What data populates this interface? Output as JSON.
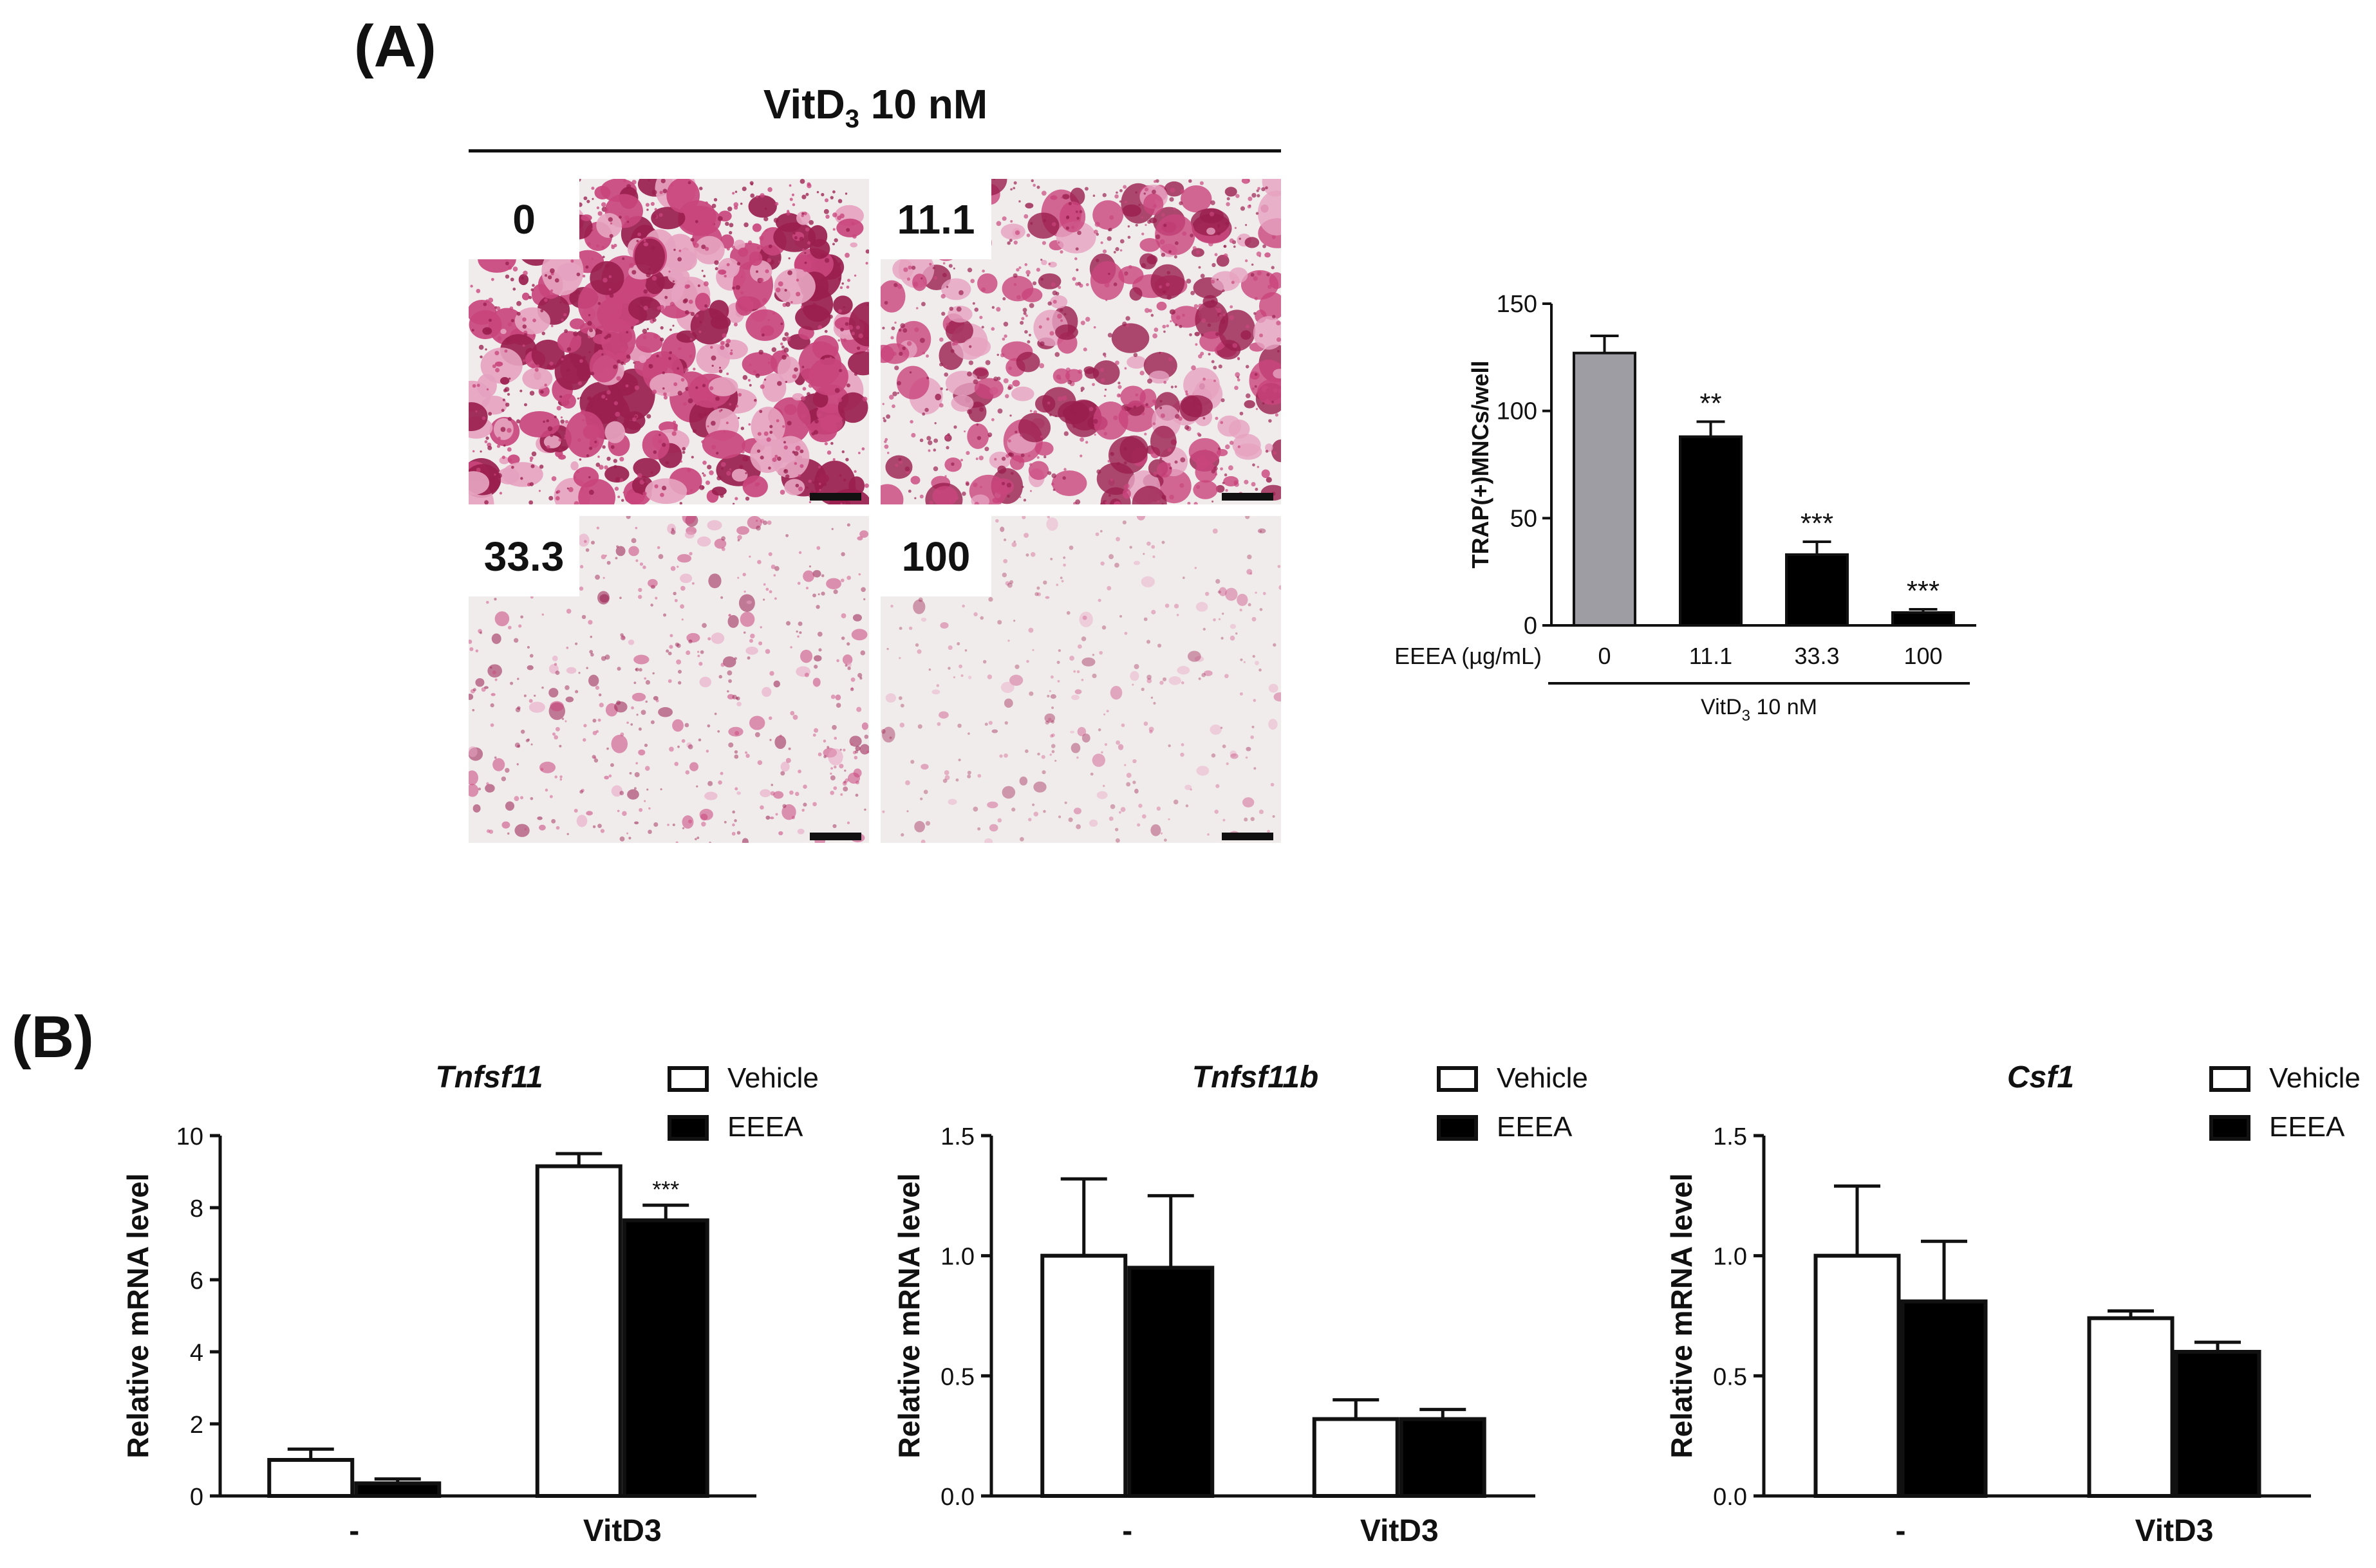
{
  "panel_a": {
    "label": "(A)",
    "micrograph_title": {
      "base": "VitD",
      "sub": "3",
      "rest": " 10 nM"
    },
    "images": [
      {
        "tag": "0",
        "density": 0.95
      },
      {
        "tag": "11.1",
        "density": 0.75
      },
      {
        "tag": "33.3",
        "density": 0.35
      },
      {
        "tag": "100",
        "density": 0.12
      }
    ],
    "stain_colors": {
      "dark": "#9a1e4e",
      "mid": "#c9457c",
      "light": "#e6a3c0",
      "background": "#f1ecec"
    }
  },
  "panel_b": {
    "label": "(B)"
  },
  "chart_data": [
    {
      "id": "trap",
      "type": "bar",
      "ylabel": "TRAP(+)MNCs/well",
      "x_prefix_label": "EEEA (µg/mL)",
      "categories": [
        "0",
        "11.1",
        "33.3",
        "100"
      ],
      "values": [
        127,
        88,
        33,
        6
      ],
      "errors": [
        8,
        7,
        6,
        1.5
      ],
      "bar_colors": [
        "#9d9da3",
        "#000000",
        "#000000",
        "#000000"
      ],
      "significance": [
        "",
        "**",
        "***",
        "***"
      ],
      "ylim": [
        0,
        150
      ],
      "yticks": [
        "0",
        "50",
        "100",
        "150"
      ],
      "group_label": {
        "base": "VitD",
        "sub": "3",
        "rest": " 10 nM"
      }
    },
    {
      "id": "tnfsf11",
      "type": "bar",
      "title": "Tnfsf11",
      "ylabel": "Relative mRNA level",
      "categories": [
        "-",
        "VitD3"
      ],
      "series": [
        {
          "name": "Vehicle",
          "values": [
            1.0,
            9.15
          ],
          "errors": [
            0.3,
            0.35
          ],
          "color": "#ffffff"
        },
        {
          "name": "EEEA",
          "values": [
            0.35,
            7.65
          ],
          "errors": [
            0.12,
            0.42
          ],
          "color": "#000000"
        }
      ],
      "significance": {
        "series": "EEEA",
        "category": "VitD3",
        "mark": "***"
      },
      "ylim": [
        0,
        10
      ],
      "yticks": [
        "0",
        "2",
        "4",
        "6",
        "8",
        "10"
      ]
    },
    {
      "id": "tnfsf11b",
      "type": "bar",
      "title": "Tnfsf11b",
      "ylabel": "Relative mRNA level",
      "categories": [
        "-",
        "VitD3"
      ],
      "series": [
        {
          "name": "Vehicle",
          "values": [
            1.0,
            0.32
          ],
          "errors": [
            0.32,
            0.08
          ],
          "color": "#ffffff"
        },
        {
          "name": "EEEA",
          "values": [
            0.95,
            0.32
          ],
          "errors": [
            0.3,
            0.04
          ],
          "color": "#000000"
        }
      ],
      "ylim": [
        0,
        1.5
      ],
      "yticks": [
        "0.0",
        "0.5",
        "1.0",
        "1.5"
      ]
    },
    {
      "id": "csf1",
      "type": "bar",
      "title": "Csf1",
      "ylabel": "Relative mRNA level",
      "categories": [
        "-",
        "VitD3"
      ],
      "series": [
        {
          "name": "Vehicle",
          "values": [
            1.0,
            0.74
          ],
          "errors": [
            0.29,
            0.03
          ],
          "color": "#ffffff"
        },
        {
          "name": "EEEA",
          "values": [
            0.81,
            0.6
          ],
          "errors": [
            0.25,
            0.04
          ],
          "color": "#000000"
        }
      ],
      "ylim": [
        0,
        1.5
      ],
      "yticks": [
        "0.0",
        "0.5",
        "1.0",
        "1.5"
      ]
    }
  ]
}
